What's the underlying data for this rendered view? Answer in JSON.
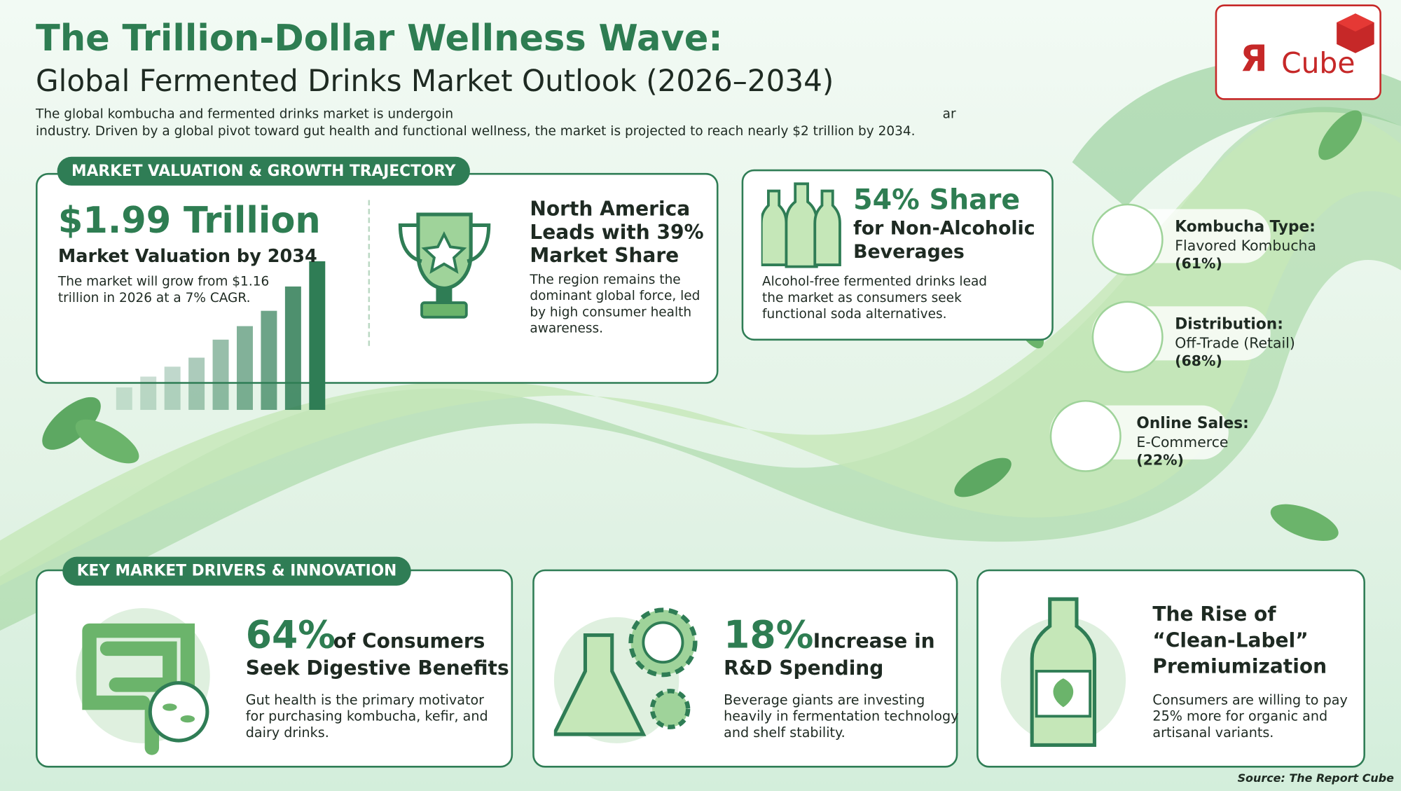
{
  "header": {
    "title": "The Trillion-Dollar Wellness Wave:",
    "subtitle": "Global Fermented Drinks Market Outlook (2026–2034)",
    "intro_line1_start": "The global kombucha and fermented drinks market is undergoin",
    "intro_line1_end": "ar",
    "intro_line2": "industry. Driven by a global pivot toward gut health and functional wellness, the market is projected to reach nearly $2 trillion by 2034."
  },
  "logo": {
    "mark": "Я",
    "text": "Cube"
  },
  "valuation": {
    "heading": "MARKET VALUATION & GROWTH TRAJECTORY",
    "big": "$1.99 Trillion",
    "label": "Market Valuation by 2034",
    "text": "The market will grow from $1.16 trillion in 2026 at a 7% CAGR."
  },
  "region": {
    "title": "North America Leads with 39% Market Share",
    "text": "The region remains the dominant global force, led by high consumer health awareness."
  },
  "non_alcoholic": {
    "big": "54% Share",
    "title": "for Non-Alcoholic Beverages",
    "text": "Alcohol-free fermented drinks lead the market as consumers seek functional soda alternatives."
  },
  "segments": [
    {
      "label": "Kombucha Type:",
      "value": "Flavored Kombucha",
      "share": "(61%)"
    },
    {
      "label": "Distribution:",
      "value": "Off-Trade (Retail)",
      "share": "(68%)"
    },
    {
      "label": "Online Sales:",
      "value": "E-Commerce",
      "share": "(22%)"
    }
  ],
  "drivers": {
    "heading": "KEY MARKET DRIVERS & INNOVATION",
    "cards": [
      {
        "stat": "64%",
        "title_rest": "of Consumers",
        "title_line2": "Seek Digestive Benefits",
        "text": "Gut health is the primary motivator for purchasing kombucha, kefir, and dairy drinks."
      },
      {
        "stat": "18%",
        "title_rest": "Increase in",
        "title_line2": "R&D Spending",
        "text": "Beverage giants are investing heavily in fermentation technology and shelf stability."
      },
      {
        "title": "The Rise of “Clean-Label” Premiumization",
        "text": "Consumers are willing to pay 25% more for organic and artisanal variants."
      }
    ]
  },
  "source": "Source: The Report Cube"
}
